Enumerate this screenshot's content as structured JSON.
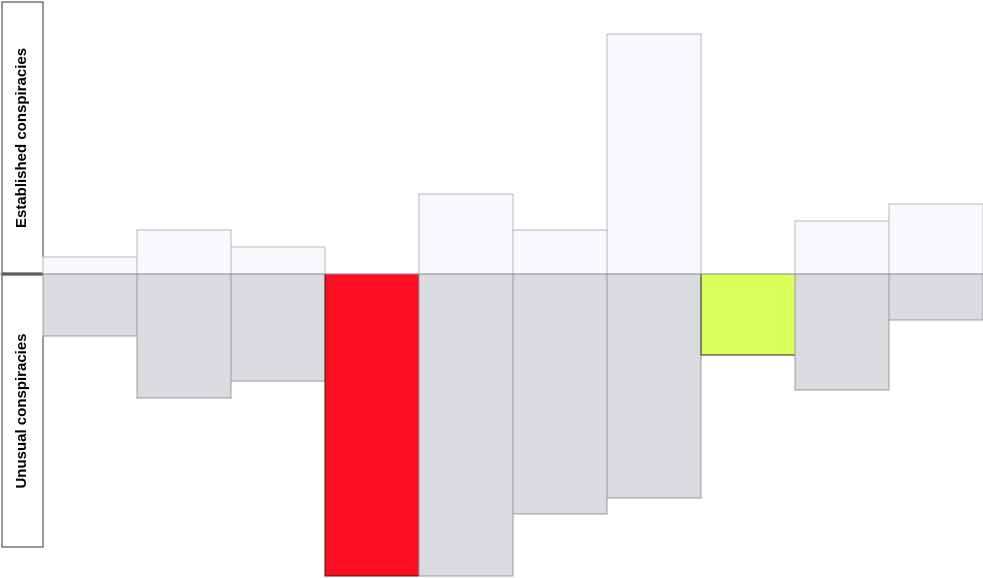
{
  "chart_data": {
    "type": "diverging-bar",
    "categories": [
      null,
      null,
      null,
      null,
      null,
      null,
      null,
      null,
      null,
      null
    ],
    "ylim": [
      -304,
      274
    ],
    "series": [
      {
        "name": "Established conspiracies",
        "color": "#f8f9fc",
        "colors": [
          "#f8f9fc",
          "#f8f9fc",
          "#f8f9fc",
          "#f8f9fc",
          "#f8f9fc",
          "#f8f9fc",
          "#f8f9fc",
          "#f8f9fc",
          "#f8f9fc",
          "#f8f9fc"
        ],
        "values": [
          17,
          44,
          27,
          0,
          80,
          44,
          240,
          0,
          53,
          70
        ]
      },
      {
        "name": "Unusual conspiracies",
        "color": "#dadbdf",
        "colors": [
          "#dadbdf",
          "#dadbdf",
          "#dadbdf",
          "#fc0d22",
          "#dadbdf",
          "#dadbdf",
          "#dadbdf",
          "#d9ff5a",
          "#dadbdf",
          "#dadbdf"
        ],
        "values": [
          -62,
          -124,
          -107,
          -302,
          -302,
          -240,
          -224,
          -81,
          -116,
          -46
        ]
      }
    ]
  }
}
